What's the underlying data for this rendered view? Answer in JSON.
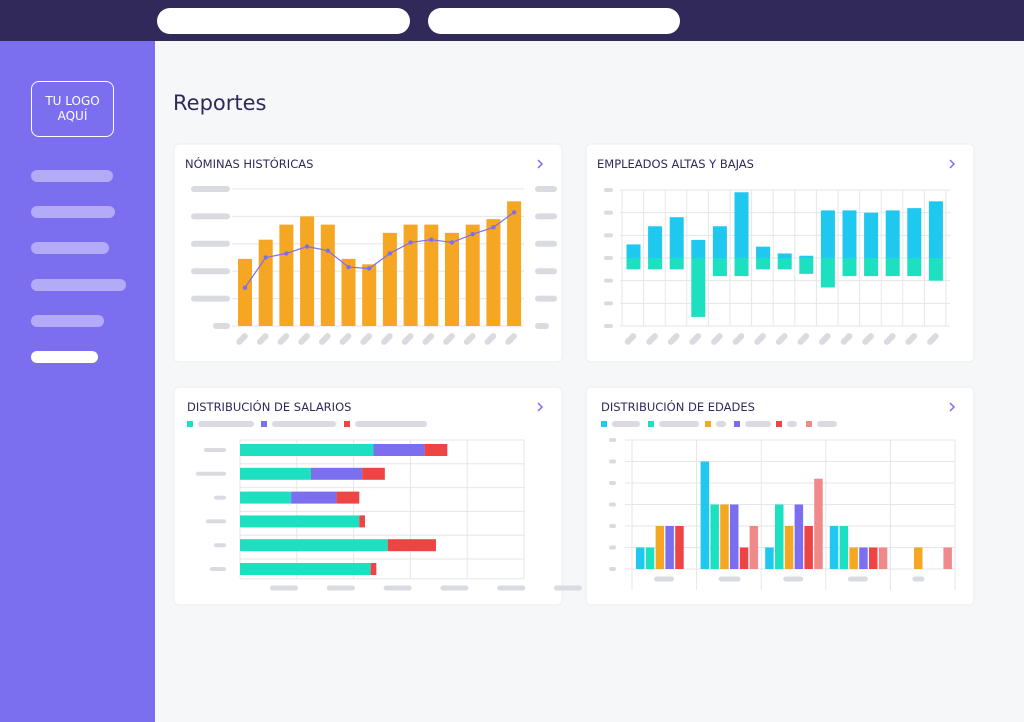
{
  "sidebar": {
    "logo": "TU LOGO AQUÍ"
  },
  "page": {
    "title": "Reportes"
  },
  "chart_data": [
    {
      "type": "bar",
      "title": "NÓMINAS HISTÓRICAS",
      "ylim": [
        0,
        100
      ],
      "grid": true,
      "series": [
        {
          "type": "bar",
          "color": "#f5a623",
          "values": [
            49,
            63,
            74,
            80,
            74,
            49,
            45,
            68,
            74,
            74,
            68,
            74,
            78,
            91
          ]
        },
        {
          "type": "line",
          "color": "#7b6ff0",
          "values": [
            28,
            50,
            53,
            58,
            55,
            43,
            42,
            53,
            61,
            63,
            61,
            67,
            72,
            83
          ]
        }
      ]
    },
    {
      "type": "bar",
      "title": "EMPLEADOS ALTAS Y BAJAS",
      "ylim": [
        -3,
        3
      ],
      "grid": true,
      "series": [
        {
          "color": "#1fc8ee",
          "values": [
            0.6,
            1.4,
            1.8,
            0.8,
            1.4,
            2.9,
            0.5,
            0.2,
            0.1,
            2.1,
            2.1,
            2.0,
            2.1,
            2.2,
            2.5
          ]
        },
        {
          "color": "#1de0c0",
          "values": [
            -0.5,
            -0.5,
            -0.5,
            -2.6,
            -0.8,
            -0.8,
            -0.5,
            -0.5,
            -0.7,
            -1.3,
            -0.8,
            -0.8,
            -0.8,
            -0.8,
            -1.0
          ]
        }
      ]
    },
    {
      "type": "bar",
      "orientation": "horizontal",
      "stacked": true,
      "title": "DISTRIBUCIÓN DE SALARIOS",
      "xlim": [
        0,
        100
      ],
      "grid": true,
      "series": [
        {
          "color": "#1de0c0",
          "values": [
            47,
            25,
            18,
            42,
            52,
            46
          ]
        },
        {
          "color": "#7b6ff0",
          "values": [
            18,
            18,
            16,
            0,
            0,
            0
          ]
        },
        {
          "color": "#ee4444",
          "values": [
            8,
            8,
            8,
            2,
            17,
            2
          ]
        }
      ]
    },
    {
      "type": "bar",
      "title": "DISTRIBUCIÓN DE EDADES",
      "ylim": [
        0,
        6
      ],
      "grid": true,
      "series": [
        {
          "color": "#1fc8ee",
          "values": [
            1,
            5,
            1,
            2,
            0
          ]
        },
        {
          "color": "#1de0c0",
          "values": [
            1,
            3,
            3,
            2,
            0
          ]
        },
        {
          "color": "#f5a623",
          "values": [
            2,
            3,
            2,
            1,
            1
          ]
        },
        {
          "color": "#7b6ff0",
          "values": [
            2,
            3,
            3,
            1,
            0
          ]
        },
        {
          "color": "#ee4444",
          "values": [
            2,
            1,
            2,
            1,
            0
          ]
        },
        {
          "color": "#f08a8a",
          "values": [
            0,
            2,
            4.2,
            1,
            1
          ]
        }
      ]
    }
  ]
}
